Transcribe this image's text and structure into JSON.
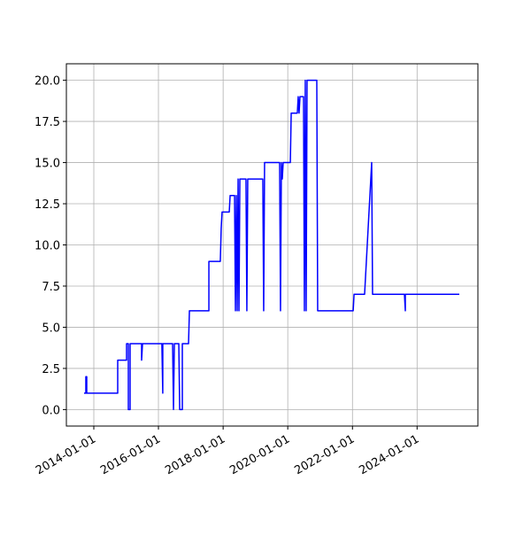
{
  "chart_data": {
    "type": "line",
    "color": "#0000ff",
    "grid": true,
    "x": [
      "2013-09-13",
      "2013-10-03",
      "2013-10-03",
      "2013-10-13",
      "2013-10-13",
      "2014-09-28",
      "2014-09-28",
      "2015-01-06",
      "2015-01-06",
      "2015-01-26",
      "2015-01-26",
      "2015-02-15",
      "2015-02-15",
      "2015-06-25",
      "2015-06-25",
      "2015-07-05",
      "2016-02-09",
      "2016-02-19",
      "2016-02-19",
      "2016-06-09",
      "2016-06-19",
      "2016-06-29",
      "2016-08-18",
      "2016-08-28",
      "2016-09-27",
      "2016-09-27",
      "2016-12-06",
      "2016-12-16",
      "2017-07-24",
      "2017-07-24",
      "2017-11-30",
      "2017-12-10",
      "2017-12-20",
      "2018-03-11",
      "2018-03-21",
      "2018-05-10",
      "2018-05-20",
      "2018-05-30",
      "2018-06-09",
      "2018-06-19",
      "2018-06-29",
      "2018-07-09",
      "2018-09-16",
      "2018-09-26",
      "2018-10-06",
      "2019-03-25",
      "2019-04-04",
      "2019-04-14",
      "2019-10-01",
      "2019-10-11",
      "2019-10-21",
      "2019-10-31",
      "2019-11-10",
      "2020-01-30",
      "2020-02-09",
      "2020-04-18",
      "2020-04-28",
      "2020-05-08",
      "2020-05-18",
      "2020-06-27",
      "2020-07-07",
      "2020-07-17",
      "2020-07-27",
      "2020-08-06",
      "2020-11-24",
      "2020-12-04",
      "2022-01-09",
      "2022-01-19",
      "2022-05-18",
      "2022-08-06",
      "2022-08-16",
      "2023-08-11",
      "2023-08-21",
      "2023-08-21",
      "2025-04-22"
    ],
    "values": [
      1,
      1,
      2,
      2,
      1,
      1,
      3,
      3,
      4,
      4,
      0,
      0,
      4,
      4,
      3,
      4,
      4,
      1,
      4,
      4,
      0,
      4,
      4,
      0,
      0,
      4,
      4,
      6,
      6,
      9,
      9,
      11,
      12,
      12,
      13,
      13,
      6,
      13,
      6,
      14,
      6,
      14,
      14,
      6,
      14,
      14,
      6,
      15,
      15,
      6,
      15,
      14,
      15,
      15,
      18,
      18,
      19,
      18,
      19,
      19,
      6,
      20,
      6,
      20,
      20,
      6,
      6,
      7,
      7,
      15,
      7,
      7,
      6,
      7,
      7
    ],
    "xlim": [
      "2013-02-25",
      "2025-11-18"
    ],
    "xticks": [
      "2014-01-01",
      "2016-01-01",
      "2018-01-01",
      "2020-01-01",
      "2022-01-01",
      "2024-01-01"
    ],
    "ylim": [
      -1,
      21
    ],
    "yticks": [
      {
        "value": 0,
        "label": "0.0"
      },
      {
        "value": 2.5,
        "label": "2.5"
      },
      {
        "value": 5,
        "label": "5.0"
      },
      {
        "value": 7.5,
        "label": "7.5"
      },
      {
        "value": 10,
        "label": "10.0"
      },
      {
        "value": 12.5,
        "label": "12.5"
      },
      {
        "value": 15,
        "label": "15.0"
      },
      {
        "value": 17.5,
        "label": "17.5"
      },
      {
        "value": 20,
        "label": "20.0"
      }
    ]
  }
}
